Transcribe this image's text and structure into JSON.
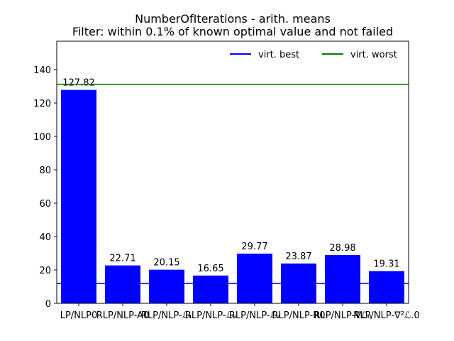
{
  "chart_data": {
    "type": "bar",
    "title": "NumberOfIterations - arith. means",
    "subtitle": "Filter: within 0.1% of known optimal value and not failed",
    "xlabel": "",
    "ylabel": "",
    "ylim": [
      0,
      157
    ],
    "yticks": [
      0,
      20,
      40,
      60,
      80,
      100,
      120,
      140
    ],
    "categories": [
      "LP/NLP0",
      "RLP/NLP-A0",
      "RLP/NLP-ℒ₁",
      "RLP/NLP-ℒ₀",
      "RLP/NLP-ℒ₂",
      "RLP/NLP-R0",
      "RLP/NLP-∇ℒ₀",
      "RLP/NLP-∇²ℒ.0"
    ],
    "values": [
      127.82,
      22.71,
      20.15,
      16.65,
      29.77,
      23.87,
      28.98,
      19.31
    ],
    "value_labels": [
      "127.82",
      "22.71",
      "20.15",
      "16.65",
      "29.77",
      "23.87",
      "28.98",
      "19.31"
    ],
    "bar_color": "#0000ff",
    "reference_lines": [
      {
        "name": "virt. best",
        "value": 12,
        "color": "#0000ff"
      },
      {
        "name": "virt. worst",
        "value": 131.2,
        "color": "#008000"
      }
    ],
    "legend_position": "top-right",
    "grid": false
  }
}
